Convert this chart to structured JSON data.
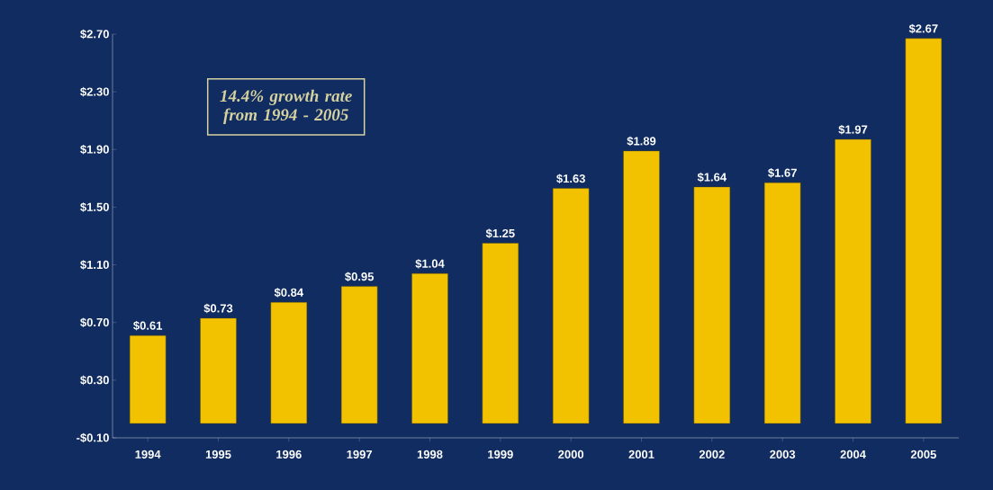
{
  "chart_data": {
    "type": "bar",
    "categories": [
      "1994",
      "1995",
      "1996",
      "1997",
      "1998",
      "1999",
      "2000",
      "2001",
      "2002",
      "2003",
      "2004",
      "2005"
    ],
    "values": [
      0.61,
      0.73,
      0.84,
      0.95,
      1.04,
      1.25,
      1.63,
      1.89,
      1.64,
      1.67,
      1.97,
      2.67
    ],
    "value_labels": [
      "$0.61",
      "$0.73",
      "$0.84",
      "$0.95",
      "$1.04",
      "$1.25",
      "$1.63",
      "$1.89",
      "$1.64",
      "$1.67",
      "$1.97",
      "$2.67"
    ],
    "color": "#f2c200",
    "ylim": [
      -0.1,
      2.7
    ],
    "yticks": [
      {
        "value": -0.1,
        "label": "-$0.10"
      },
      {
        "value": 0.3,
        "label": "$0.30"
      },
      {
        "value": 0.7,
        "label": "$0.70"
      },
      {
        "value": 1.1,
        "label": "$1.10"
      },
      {
        "value": 1.5,
        "label": "$1.50"
      },
      {
        "value": 1.9,
        "label": "$1.90"
      },
      {
        "value": 2.3,
        "label": "$2.30"
      },
      {
        "value": 2.7,
        "label": "$2.70"
      }
    ],
    "annotations": [
      "14.4% growth rate from 1994 - 2005"
    ]
  }
}
